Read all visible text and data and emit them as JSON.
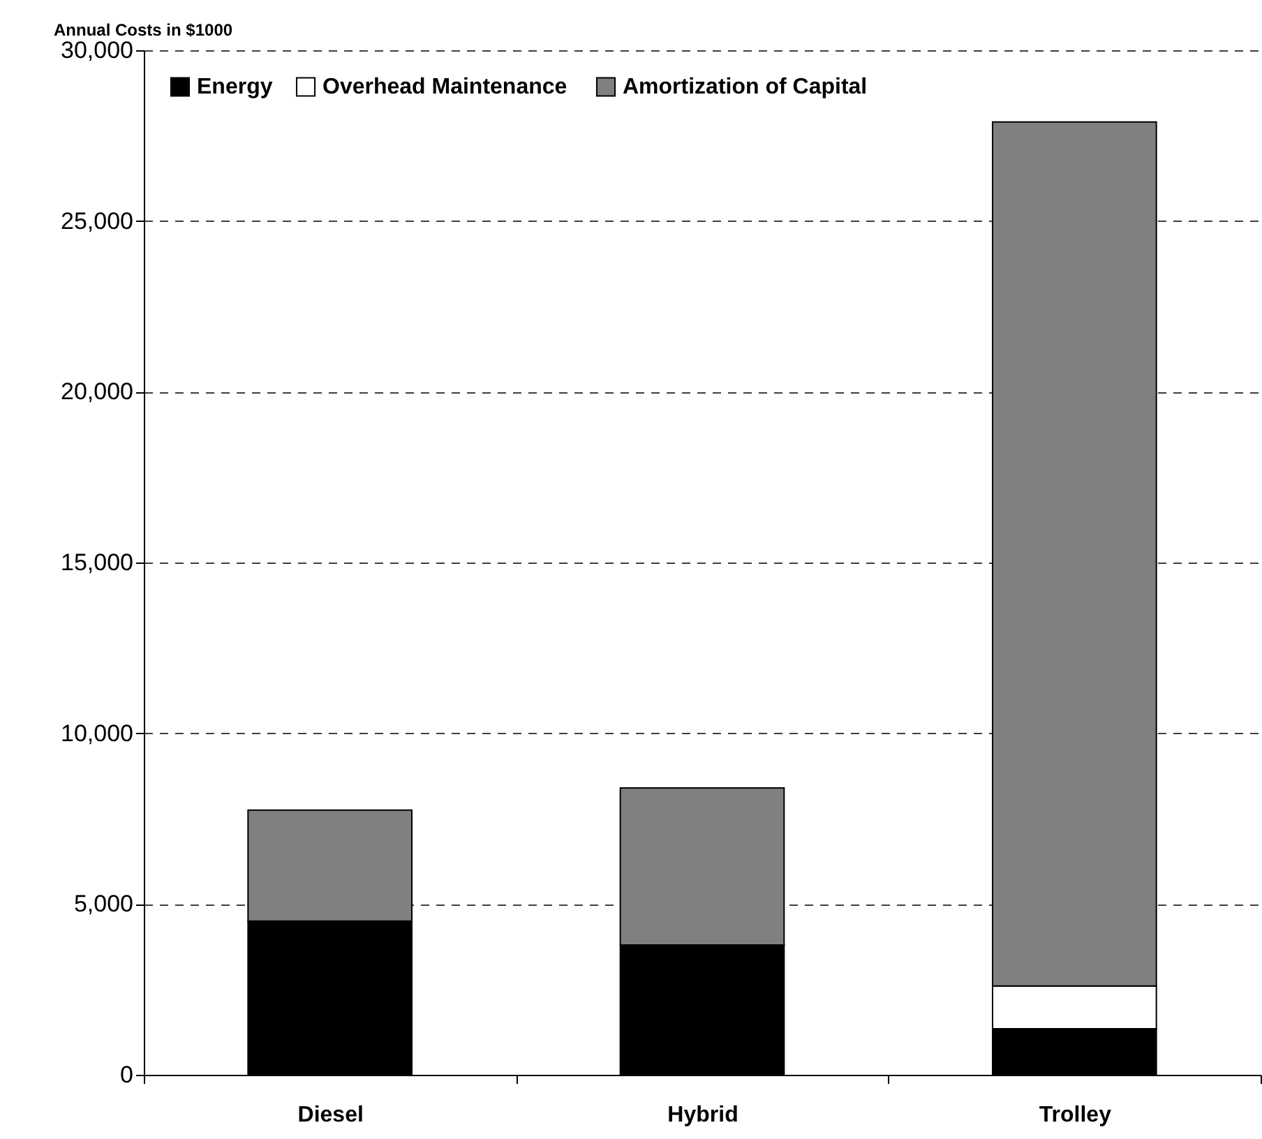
{
  "chart_data": {
    "type": "bar",
    "ylabel": "Annual Costs in $1000",
    "categories": [
      "Diesel",
      "Hybrid",
      "Trolley"
    ],
    "series": [
      {
        "name": "Energy",
        "color": "#000000",
        "values": [
          4500,
          3800,
          1350
        ]
      },
      {
        "name": "Overhead  Maintenance",
        "color": "#ffffff",
        "values": [
          0,
          0,
          1250
        ]
      },
      {
        "name": "Amortization of Capital",
        "color": "#808080",
        "values": [
          3250,
          4600,
          25300
        ]
      }
    ],
    "stacked": true,
    "ylim": [
      0,
      30000
    ],
    "yticks": [
      {
        "value": 0,
        "label": "0"
      },
      {
        "value": 5000,
        "label": "5,000"
      },
      {
        "value": 10000,
        "label": "10,000"
      },
      {
        "value": 15000,
        "label": "15,000"
      },
      {
        "value": 20000,
        "label": "20,000"
      },
      {
        "value": 25000,
        "label": "25,000"
      },
      {
        "value": 30000,
        "label": "30,000"
      }
    ],
    "grid": "y",
    "legend": "top left"
  }
}
